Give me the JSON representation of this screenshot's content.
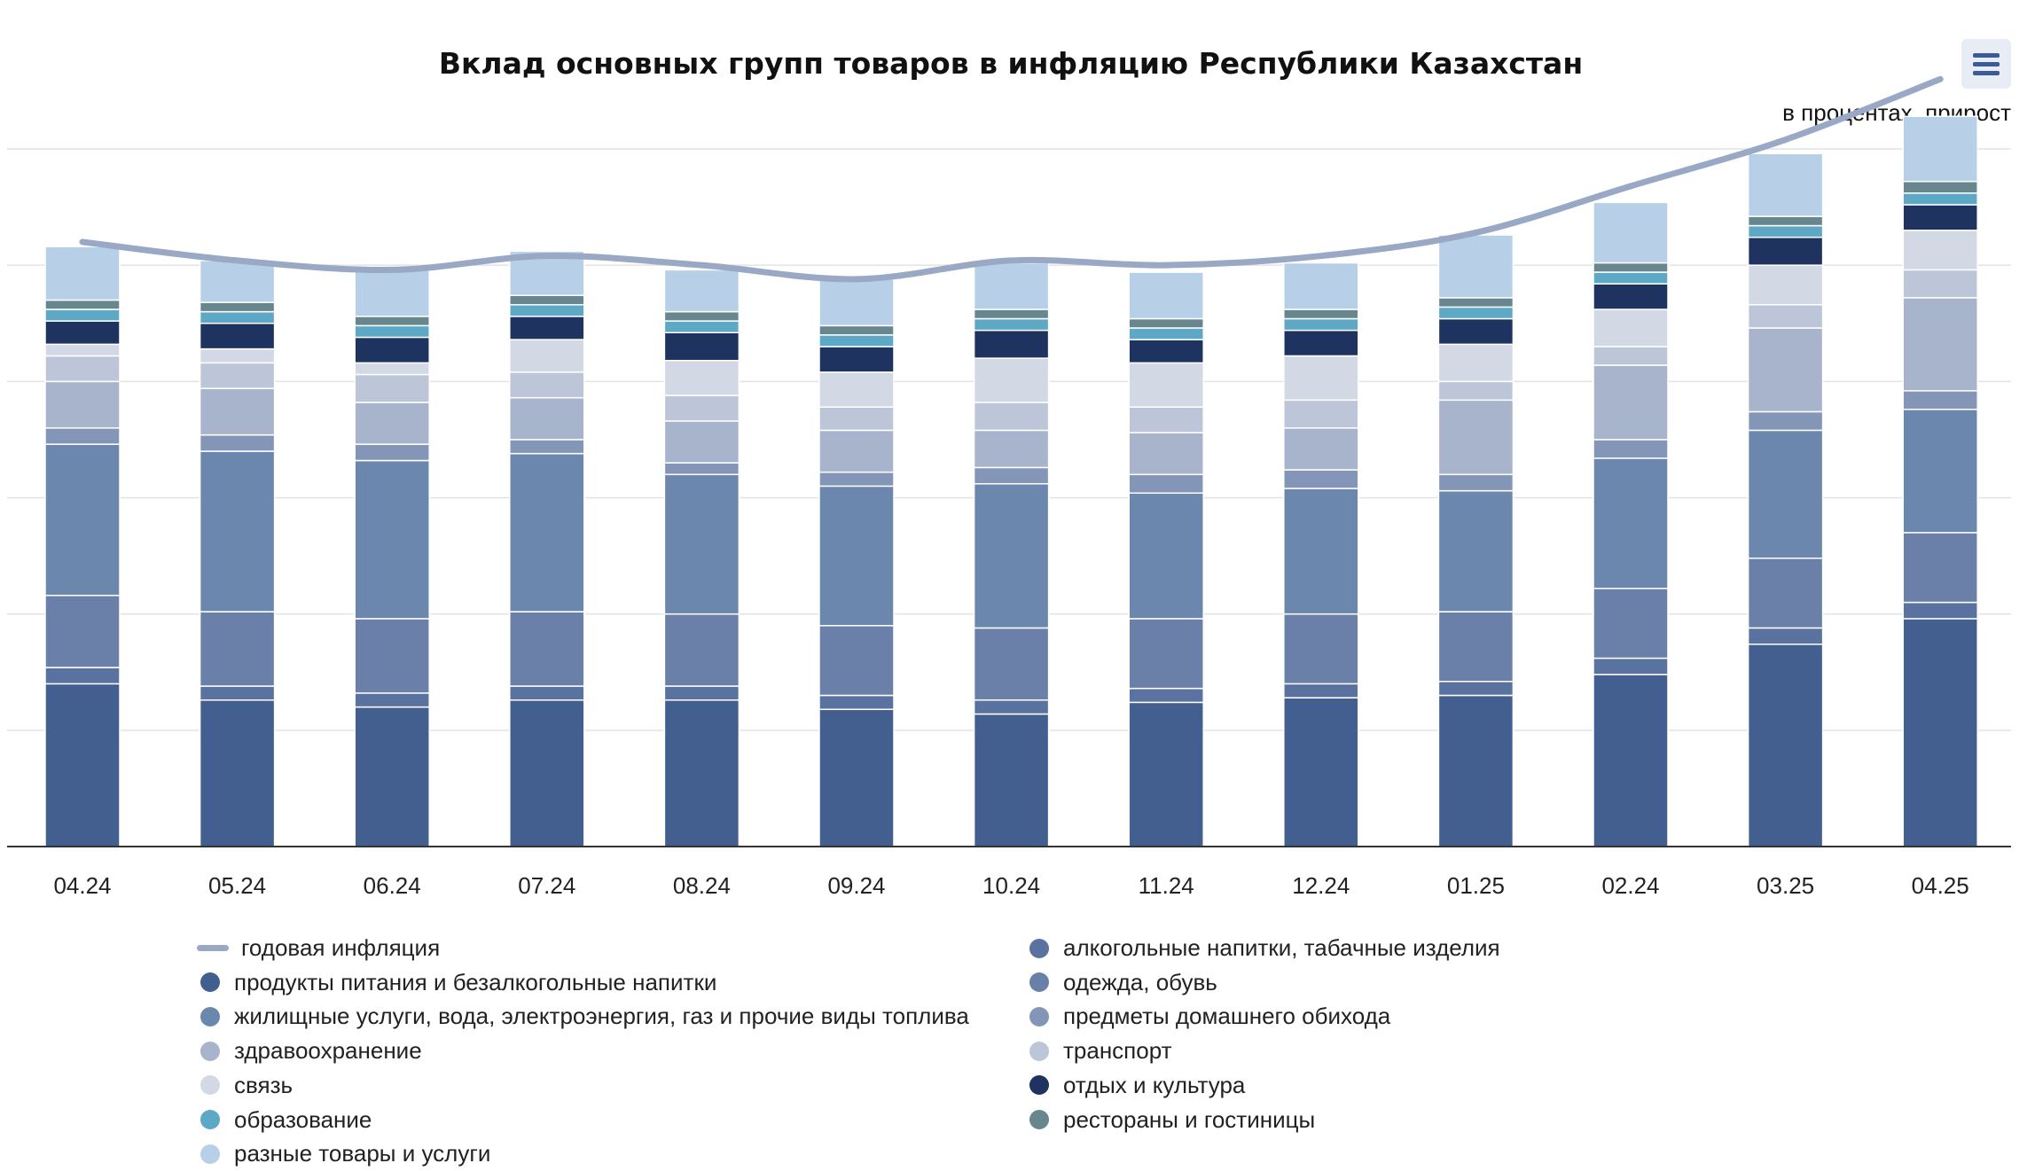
{
  "chart_data": {
    "type": "bar",
    "stacked": true,
    "title": "Вклад основных групп товаров в инфляцию Республики Казахстан",
    "subtitle": "в процентах, прирост",
    "categories": [
      "04.24",
      "05.24",
      "06.24",
      "07.24",
      "08.24",
      "09.24",
      "10.24",
      "11.24",
      "12.24",
      "01.25",
      "02.24",
      "03.25",
      "04.25"
    ],
    "ylim": [
      0,
      15
    ],
    "grid": true,
    "legend_placement": "bottom",
    "series": [
      {
        "name": "продукты питания и безалкогольные напитки",
        "color": "#425f8f",
        "values": [
          3.5,
          3.15,
          3.0,
          3.15,
          3.15,
          2.95,
          2.85,
          3.1,
          3.2,
          3.25,
          3.7,
          4.35,
          4.9
        ]
      },
      {
        "name": "алкогольные напитки, табачные изделия",
        "color": "#5a72a0",
        "values": [
          0.35,
          0.3,
          0.3,
          0.3,
          0.3,
          0.3,
          0.3,
          0.3,
          0.3,
          0.3,
          0.35,
          0.35,
          0.35
        ]
      },
      {
        "name": "одежда, обувь",
        "color": "#6b80a8",
        "values": [
          1.55,
          1.6,
          1.6,
          1.6,
          1.55,
          1.5,
          1.55,
          1.5,
          1.5,
          1.5,
          1.5,
          1.5,
          1.5
        ]
      },
      {
        "name": "жилищные услуги, вода, электроэнергия, газ и прочие виды топлива",
        "color": "#6c87ad",
        "values": [
          3.25,
          3.45,
          3.4,
          3.4,
          3.0,
          3.0,
          3.1,
          2.7,
          2.7,
          2.6,
          2.8,
          2.75,
          2.65
        ]
      },
      {
        "name": "предметы домашнего обихода",
        "color": "#8496b8",
        "values": [
          0.35,
          0.35,
          0.35,
          0.3,
          0.25,
          0.3,
          0.35,
          0.4,
          0.4,
          0.35,
          0.4,
          0.4,
          0.4
        ]
      },
      {
        "name": "здравоохранение",
        "color": "#a7b4cc",
        "values": [
          1.0,
          1.0,
          0.9,
          0.9,
          0.9,
          0.9,
          0.8,
          0.9,
          0.9,
          1.6,
          1.6,
          1.8,
          2.0
        ]
      },
      {
        "name": "транспорт",
        "color": "#bcc6d8",
        "values": [
          0.55,
          0.55,
          0.6,
          0.55,
          0.55,
          0.5,
          0.6,
          0.55,
          0.6,
          0.4,
          0.4,
          0.5,
          0.6
        ]
      },
      {
        "name": "связь",
        "color": "#d2d9e4",
        "values": [
          0.25,
          0.3,
          0.25,
          0.7,
          0.75,
          0.75,
          0.95,
          0.95,
          0.95,
          0.8,
          0.8,
          0.85,
          0.85
        ]
      },
      {
        "name": "отдых и культура",
        "color": "#1e3360",
        "values": [
          0.5,
          0.55,
          0.55,
          0.5,
          0.6,
          0.55,
          0.6,
          0.5,
          0.55,
          0.55,
          0.55,
          0.6,
          0.55
        ]
      },
      {
        "name": "образование",
        "color": "#5da8c4",
        "values": [
          0.25,
          0.25,
          0.25,
          0.25,
          0.25,
          0.25,
          0.25,
          0.25,
          0.25,
          0.25,
          0.25,
          0.25,
          0.25
        ]
      },
      {
        "name": "рестораны и гостиницы",
        "color": "#67868e",
        "values": [
          0.2,
          0.2,
          0.2,
          0.2,
          0.2,
          0.2,
          0.2,
          0.2,
          0.2,
          0.2,
          0.2,
          0.2,
          0.25
        ]
      },
      {
        "name": "разные товары и услуги",
        "color": "#b7d0e8",
        "values": [
          1.15,
          0.9,
          1.0,
          0.95,
          0.9,
          1.0,
          1.0,
          1.0,
          1.0,
          1.35,
          1.3,
          1.35,
          1.4
        ]
      }
    ],
    "line_series": {
      "name": "годовая инфляция",
      "color": "#99a9c5",
      "values": [
        13.0,
        12.6,
        12.4,
        12.7,
        12.5,
        12.2,
        12.6,
        12.5,
        12.7,
        13.2,
        14.2,
        15.2,
        16.5
      ]
    }
  },
  "ui": {
    "menu_icon": "hamburger-menu-icon"
  }
}
